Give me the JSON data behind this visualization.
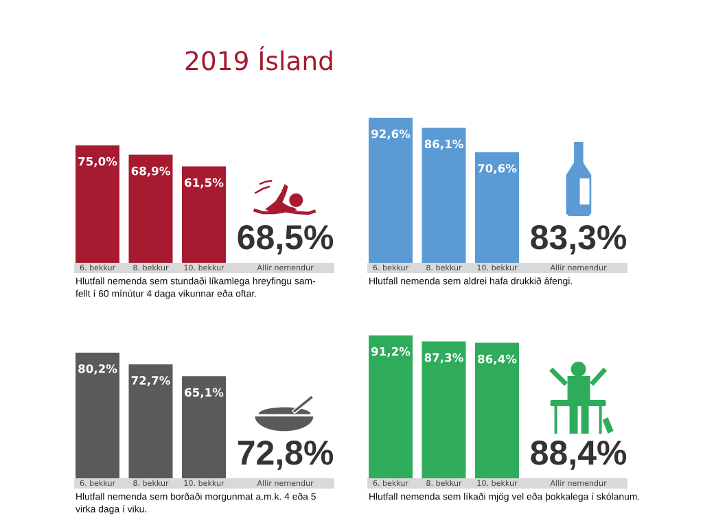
{
  "chart_data": [
    {
      "type": "bar",
      "title": "2019 Ísland",
      "categories": [
        "6. bekkur",
        "8. bekkur",
        "10. bekkur",
        "Allir nemendur"
      ],
      "values": [
        75.0,
        68.9,
        61.5,
        null
      ],
      "value_labels": [
        "75,0%",
        "68,9%",
        "61,5%",
        null
      ],
      "color": "#a71b30",
      "tick_labels": "x",
      "annotations": [
        "68,5%",
        "Hlutfall nemenda sem stundaði líkamlega hreyfingu sam-\nfellt í 60 mínútur 4 daga vikunnar eða oftar."
      ]
    },
    {
      "type": "bar",
      "categories": [
        "6. bekkur",
        "8. bekkur",
        "10. bekkur",
        "Allir nemendur"
      ],
      "values": [
        92.6,
        86.1,
        70.6,
        null
      ],
      "value_labels": [
        "92,6%",
        "86,1%",
        "70,6%",
        null
      ],
      "color": "#5b9bd5",
      "tick_labels": "x",
      "annotations": [
        "83,3%",
        "Hlutfall nemenda sem aldrei hafa drukkið áfengi."
      ]
    },
    {
      "type": "bar",
      "categories": [
        "6. bekkur",
        "8. bekkur",
        "10. bekkur",
        "Allir nemendur"
      ],
      "values": [
        80.2,
        72.7,
        65.1,
        null
      ],
      "value_labels": [
        "80,2%",
        "72,7%",
        "65,1%",
        null
      ],
      "color": "#5a5a5a",
      "tick_labels": "x",
      "annotations": [
        "72,8%",
        "Hlutfall nemenda sem borðaði morgunmat a.m.k. 4 eða 5\nvirka daga í viku."
      ]
    },
    {
      "type": "bar",
      "categories": [
        "6. bekkur",
        "8. bekkur",
        "10. bekkur",
        "Allir nemendur"
      ],
      "values": [
        91.2,
        87.3,
        86.4,
        null
      ],
      "value_labels": [
        "91,2%",
        "87,3%",
        "86,4%",
        null
      ],
      "color": "#2eac5c",
      "tick_labels": "x",
      "annotations": [
        "88,4%",
        "Hlutfall nemenda sem líkaði mjög vel eða þokkalega í skólanum."
      ]
    }
  ]
}
